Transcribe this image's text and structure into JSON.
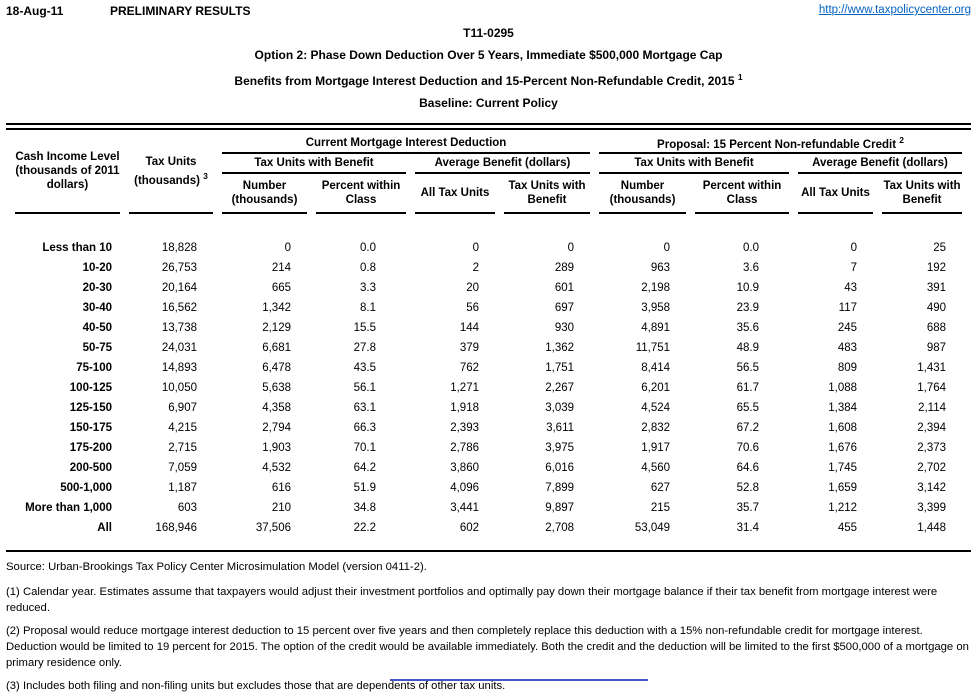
{
  "page": {
    "date": "18-Aug-11",
    "preliminary": "PRELIMINARY RESULTS",
    "link": "http://www.taxpolicycenter.org",
    "table_id": "T11-0295",
    "title_option": "Option 2: Phase Down Deduction Over 5 Years, Immediate $500,000 Mortgage Cap",
    "title_benefits": "Benefits from Mortgage Interest Deduction and 15-Percent Non-Refundable Credit, 2015",
    "title_benefits_sup": "1",
    "title_baseline": "Baseline: Current Policy"
  },
  "colors": {
    "link": "#0563C1",
    "text": "#000000",
    "cutoff_fragment": "#4156c8"
  },
  "table": {
    "col_income": "Cash Income Level (thousands of 2011 dollars)",
    "col_tax_units": "Tax Units (thousands)",
    "col_tax_units_sup": "3",
    "group_current": "Current Mortgage Interest Deduction",
    "group_proposal": "Proposal: 15 Percent Non-refundable Credit",
    "group_proposal_sup": "2",
    "sub_units_benefit": "Tax Units with Benefit",
    "sub_avg_benefit": "Average Benefit (dollars)",
    "col_number": "Number (thousands)",
    "col_percent": "Percent within Class",
    "col_all_units": "All Tax Units",
    "col_units_benefit": "Tax Units with Benefit",
    "rows": [
      [
        "Less than 10",
        "18,828",
        "0",
        "0.0",
        "0",
        "0",
        "0",
        "0.0",
        "0",
        "25"
      ],
      [
        "10-20",
        "26,753",
        "214",
        "0.8",
        "2",
        "289",
        "963",
        "3.6",
        "7",
        "192"
      ],
      [
        "20-30",
        "20,164",
        "665",
        "3.3",
        "20",
        "601",
        "2,198",
        "10.9",
        "43",
        "391"
      ],
      [
        "30-40",
        "16,562",
        "1,342",
        "8.1",
        "56",
        "697",
        "3,958",
        "23.9",
        "117",
        "490"
      ],
      [
        "40-50",
        "13,738",
        "2,129",
        "15.5",
        "144",
        "930",
        "4,891",
        "35.6",
        "245",
        "688"
      ],
      [
        "50-75",
        "24,031",
        "6,681",
        "27.8",
        "379",
        "1,362",
        "11,751",
        "48.9",
        "483",
        "987"
      ],
      [
        "75-100",
        "14,893",
        "6,478",
        "43.5",
        "762",
        "1,751",
        "8,414",
        "56.5",
        "809",
        "1,431"
      ],
      [
        "100-125",
        "10,050",
        "5,638",
        "56.1",
        "1,271",
        "2,267",
        "6,201",
        "61.7",
        "1,088",
        "1,764"
      ],
      [
        "125-150",
        "6,907",
        "4,358",
        "63.1",
        "1,918",
        "3,039",
        "4,524",
        "65.5",
        "1,384",
        "2,114"
      ],
      [
        "150-175",
        "4,215",
        "2,794",
        "66.3",
        "2,393",
        "3,611",
        "2,832",
        "67.2",
        "1,608",
        "2,394"
      ],
      [
        "175-200",
        "2,715",
        "1,903",
        "70.1",
        "2,786",
        "3,975",
        "1,917",
        "70.6",
        "1,676",
        "2,373"
      ],
      [
        "200-500",
        "7,059",
        "4,532",
        "64.2",
        "3,860",
        "6,016",
        "4,560",
        "64.6",
        "1,745",
        "2,702"
      ],
      [
        "500-1,000",
        "1,187",
        "616",
        "51.9",
        "4,096",
        "7,899",
        "627",
        "52.8",
        "1,659",
        "3,142"
      ],
      [
        "More than 1,000",
        "603",
        "210",
        "34.8",
        "3,441",
        "9,897",
        "215",
        "35.7",
        "1,212",
        "3,399"
      ],
      [
        "All",
        "168,946",
        "37,506",
        "22.2",
        "602",
        "2,708",
        "53,049",
        "31.4",
        "455",
        "1,448"
      ]
    ]
  },
  "footer": {
    "source": "Source: Urban-Brookings Tax Policy Center Microsimulation Model (version 0411-2).",
    "note1": "(1) Calendar year. Estimates assume that taxpayers would adjust their investment portfolios and optimally pay down their mortgage balance if their tax benefit from mortgage interest were reduced.",
    "note2": "(2) Proposal would reduce mortgage interest deduction to 15 percent over five years and then completely replace this deduction with a 15% non-refundable credit for mortgage interest. Deduction would be limited to 19 percent for 2015. The option of the credit would be available immediately. Both the credit and the deduction will be limited to the first $500,000 of a mortgage on primary residence only.",
    "note3": "(3) Includes both filing and non-filing units but excludes those that are dependents of other tax units."
  }
}
